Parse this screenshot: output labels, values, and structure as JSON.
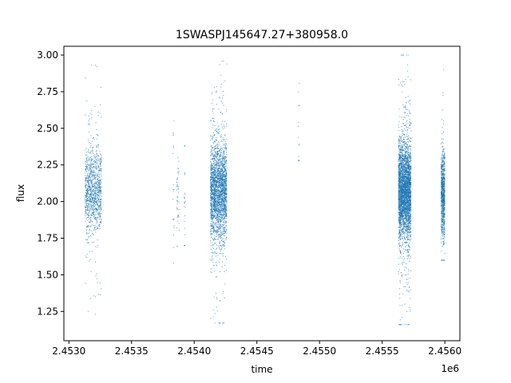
{
  "chart_data": {
    "type": "scatter",
    "title": "1SWASPJ145647.27+380958.0",
    "xlabel": "time",
    "ylabel": "flux",
    "x_offset_label": "1e6",
    "xlim": [
      2.45296,
      2.45612
    ],
    "ylim": [
      1.05,
      3.06
    ],
    "x_ticks": [
      2.453,
      2.4535,
      2.454,
      2.4545,
      2.455,
      2.4555,
      2.456
    ],
    "x_tick_labels": [
      "2.4530",
      "2.4535",
      "2.4540",
      "2.4545",
      "2.4550",
      "2.4555",
      "2.4560"
    ],
    "y_ticks": [
      1.25,
      1.5,
      1.75,
      2.0,
      2.25,
      2.5,
      2.75,
      3.0
    ],
    "y_tick_labels": [
      "1.25",
      "1.50",
      "1.75",
      "2.00",
      "2.25",
      "2.50",
      "2.75",
      "3.00"
    ],
    "grid": false,
    "marker_color": "#1f77b4",
    "clusters": [
      {
        "x_start": 2.45313,
        "x_end": 2.45326,
        "y_center": 2.07,
        "y_spread": 0.15,
        "y_min": 1.23,
        "y_max": 2.93,
        "n": 1100
      },
      {
        "x_start": 2.45383,
        "x_end": 2.45384,
        "y_center": 2.05,
        "y_spread": 0.25,
        "y_min": 1.58,
        "y_max": 2.55,
        "n": 20
      },
      {
        "x_start": 2.45386,
        "x_end": 2.45388,
        "y_center": 2.07,
        "y_spread": 0.13,
        "y_min": 1.6,
        "y_max": 2.3,
        "n": 45
      },
      {
        "x_start": 2.45392,
        "x_end": 2.45393,
        "y_center": 2.02,
        "y_spread": 0.18,
        "y_min": 1.7,
        "y_max": 2.38,
        "n": 25
      },
      {
        "x_start": 2.45413,
        "x_end": 2.45426,
        "y_center": 2.07,
        "y_spread": 0.16,
        "y_min": 1.17,
        "y_max": 2.96,
        "n": 2600
      },
      {
        "x_start": 2.45483,
        "x_end": 2.45484,
        "y_center": 2.55,
        "y_spread": 0.25,
        "y_min": 2.28,
        "y_max": 2.86,
        "n": 14
      },
      {
        "x_start": 2.45563,
        "x_end": 2.45573,
        "y_center": 2.07,
        "y_spread": 0.16,
        "y_min": 1.16,
        "y_max": 3.0,
        "n": 3500
      },
      {
        "x_start": 2.45597,
        "x_end": 2.456,
        "y_center": 2.05,
        "y_spread": 0.14,
        "y_min": 1.6,
        "y_max": 2.98,
        "n": 900
      }
    ]
  }
}
